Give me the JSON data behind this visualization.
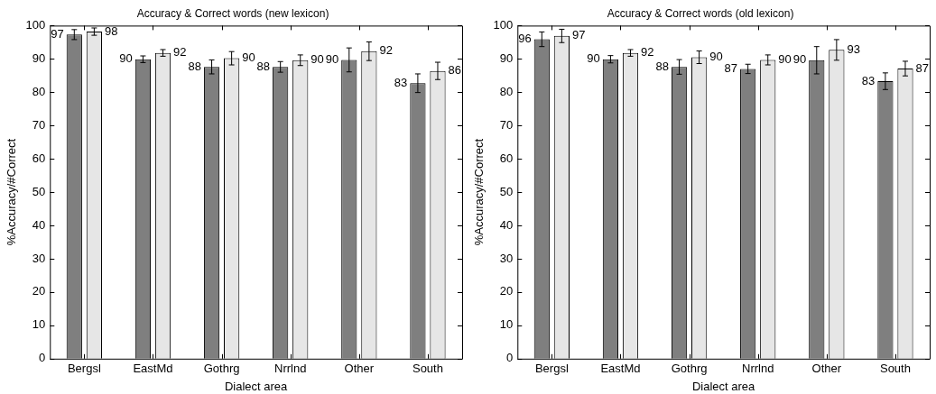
{
  "chart_data": [
    {
      "type": "bar",
      "title": "Accuracy & Correct words (new lexicon)",
      "xlabel": "Dialect area",
      "ylabel": "%Accuracy/#Correct",
      "categories": [
        "Bergsl",
        "EastMd",
        "Gothrg",
        "Nrrlnd",
        "Other",
        "South"
      ],
      "ylim": [
        0,
        100
      ],
      "yticks": [
        0,
        10,
        20,
        30,
        40,
        50,
        60,
        70,
        80,
        90,
        100
      ],
      "grid": false,
      "legend": false,
      "series": [
        {
          "color": "#7f7f7f",
          "values": [
            97.3,
            89.9,
            87.6,
            87.6,
            89.7,
            82.7
          ],
          "errors": [
            1.5,
            1.0,
            2.1,
            1.6,
            3.6,
            2.8
          ],
          "value_labels": [
            "97",
            "90",
            "88",
            "88",
            "90",
            "83"
          ]
        },
        {
          "color": "#e6e6e6",
          "values": [
            98.2,
            91.8,
            90.2,
            89.6,
            92.3,
            86.4
          ],
          "errors": [
            1.1,
            1.0,
            2.0,
            1.6,
            2.8,
            2.6
          ],
          "value_labels": [
            "98",
            "92",
            "90",
            "90",
            "92",
            "86"
          ]
        }
      ]
    },
    {
      "type": "bar",
      "title": "Accuracy & Correct words (old lexicon)",
      "xlabel": "Dialect area",
      "ylabel": "%Accuracy/#Correct",
      "categories": [
        "Bergsl",
        "EastMd",
        "Gothrg",
        "Nrrlnd",
        "Other",
        "South"
      ],
      "ylim": [
        0,
        100
      ],
      "yticks": [
        0,
        10,
        20,
        30,
        40,
        50,
        60,
        70,
        80,
        90,
        100
      ],
      "grid": false,
      "legend": false,
      "series": [
        {
          "color": "#7f7f7f",
          "values": [
            95.9,
            89.9,
            87.6,
            87.0,
            89.6,
            83.3
          ],
          "errors": [
            2.2,
            1.1,
            2.2,
            1.4,
            4.1,
            2.5
          ],
          "value_labels": [
            "96",
            "90",
            "88",
            "87",
            "90",
            "83"
          ]
        },
        {
          "color": "#e6e6e6",
          "values": [
            96.9,
            91.8,
            90.5,
            89.7,
            92.7,
            87.1
          ],
          "errors": [
            2.0,
            1.0,
            1.9,
            1.5,
            3.1,
            2.2
          ],
          "value_labels": [
            "97",
            "92",
            "90",
            "90",
            "93",
            "87"
          ]
        }
      ]
    }
  ]
}
